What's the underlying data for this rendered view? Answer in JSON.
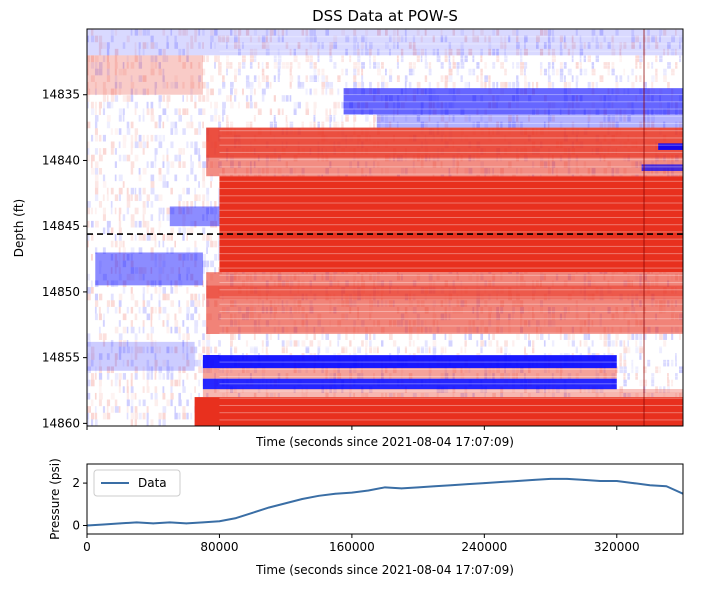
{
  "chart_data": [
    {
      "type": "heatmap",
      "title": "DSS Data at POW-S",
      "xlabel": "Time (seconds since 2021-08-04 17:07:09)",
      "ylabel": "Depth (ft)",
      "xlim": [
        0,
        360000
      ],
      "ylim": [
        14830.0,
        14860.2
      ],
      "y_inverted": true,
      "yticks": [
        14835,
        14840,
        14845,
        14850,
        14855,
        14860
      ],
      "xticks_labeled": false,
      "colormap": {
        "negative": "#0000ff",
        "zero": "#ffffff",
        "positive": "#e8301e"
      },
      "reference_line": {
        "depth": 14845.6,
        "style": "dashed",
        "color": "#000000"
      },
      "bands": [
        {
          "depth_from": 14830.0,
          "depth_to": 14832.0,
          "time_from": 0,
          "time_to": 360000,
          "sign": -1,
          "intensity": 0.15
        },
        {
          "depth_from": 14832.0,
          "depth_to": 14835.0,
          "time_from": 0,
          "time_to": 70000,
          "sign": 1,
          "intensity": 0.25
        },
        {
          "depth_from": 14834.5,
          "depth_to": 14836.5,
          "time_from": 155000,
          "time_to": 360000,
          "sign": -1,
          "intensity": 0.6
        },
        {
          "depth_from": 14836.5,
          "depth_to": 14837.5,
          "time_from": 175000,
          "time_to": 360000,
          "sign": -1,
          "intensity": 0.3
        },
        {
          "depth_from": 14837.5,
          "depth_to": 14839.8,
          "time_from": 72000,
          "time_to": 360000,
          "sign": 1,
          "intensity": 0.85
        },
        {
          "depth_from": 14838.7,
          "depth_to": 14839.2,
          "time_from": 345000,
          "time_to": 360000,
          "sign": -1,
          "intensity": 0.9
        },
        {
          "depth_from": 14839.8,
          "depth_to": 14841.2,
          "time_from": 72000,
          "time_to": 360000,
          "sign": 1,
          "intensity": 0.55
        },
        {
          "depth_from": 14840.3,
          "depth_to": 14840.8,
          "time_from": 335000,
          "time_to": 360000,
          "sign": -1,
          "intensity": 0.7
        },
        {
          "depth_from": 14841.2,
          "depth_to": 14848.5,
          "time_from": 80000,
          "time_to": 360000,
          "sign": 1,
          "intensity": 1.0
        },
        {
          "depth_from": 14843.5,
          "depth_to": 14845.0,
          "time_from": 50000,
          "time_to": 80000,
          "sign": -1,
          "intensity": 0.45
        },
        {
          "depth_from": 14847.0,
          "depth_to": 14849.5,
          "time_from": 5000,
          "time_to": 70000,
          "sign": -1,
          "intensity": 0.45
        },
        {
          "depth_from": 14848.5,
          "depth_to": 14849.5,
          "time_from": 72000,
          "time_to": 360000,
          "sign": 1,
          "intensity": 0.6
        },
        {
          "depth_from": 14849.5,
          "depth_to": 14850.5,
          "time_from": 72000,
          "time_to": 360000,
          "sign": 1,
          "intensity": 0.8
        },
        {
          "depth_from": 14850.5,
          "depth_to": 14853.2,
          "time_from": 72000,
          "time_to": 360000,
          "sign": 1,
          "intensity": 0.6
        },
        {
          "depth_from": 14853.8,
          "depth_to": 14856.0,
          "time_from": 0,
          "time_to": 65000,
          "sign": -1,
          "intensity": 0.2
        },
        {
          "depth_from": 14854.8,
          "depth_to": 14855.8,
          "time_from": 70000,
          "time_to": 320000,
          "sign": -1,
          "intensity": 0.9
        },
        {
          "depth_from": 14855.8,
          "depth_to": 14856.6,
          "time_from": 70000,
          "time_to": 320000,
          "sign": 1,
          "intensity": 0.45
        },
        {
          "depth_from": 14856.6,
          "depth_to": 14857.4,
          "time_from": 70000,
          "time_to": 320000,
          "sign": -1,
          "intensity": 0.85
        },
        {
          "depth_from": 14857.4,
          "depth_to": 14858.0,
          "time_from": 70000,
          "time_to": 360000,
          "sign": 1,
          "intensity": 0.35
        },
        {
          "depth_from": 14858.0,
          "depth_to": 14860.2,
          "time_from": 65000,
          "time_to": 360000,
          "sign": 1,
          "intensity": 1.0
        }
      ]
    },
    {
      "type": "line",
      "xlabel": "Time (seconds since 2021-08-04 17:07:09)",
      "ylabel": "Pressure (psi)",
      "xlim": [
        0,
        360000
      ],
      "ylim": [
        -0.4,
        2.9
      ],
      "xticks": [
        0,
        80000,
        160000,
        240000,
        320000
      ],
      "yticks": [
        0,
        2
      ],
      "legend_position": "upper-left",
      "series": [
        {
          "name": "Data",
          "color": "#3a6ea5",
          "x": [
            0,
            10000,
            20000,
            30000,
            40000,
            50000,
            60000,
            70000,
            80000,
            90000,
            100000,
            110000,
            120000,
            130000,
            140000,
            150000,
            160000,
            170000,
            180000,
            190000,
            200000,
            210000,
            220000,
            230000,
            240000,
            250000,
            260000,
            270000,
            280000,
            290000,
            300000,
            310000,
            320000,
            330000,
            340000,
            350000,
            360000
          ],
          "y": [
            0.0,
            0.05,
            0.1,
            0.15,
            0.1,
            0.15,
            0.1,
            0.15,
            0.2,
            0.35,
            0.6,
            0.85,
            1.05,
            1.25,
            1.4,
            1.5,
            1.55,
            1.65,
            1.8,
            1.75,
            1.8,
            1.85,
            1.9,
            1.95,
            2.0,
            2.05,
            2.1,
            2.15,
            2.2,
            2.2,
            2.15,
            2.1,
            2.1,
            2.0,
            1.9,
            1.85,
            1.5
          ]
        }
      ]
    }
  ]
}
